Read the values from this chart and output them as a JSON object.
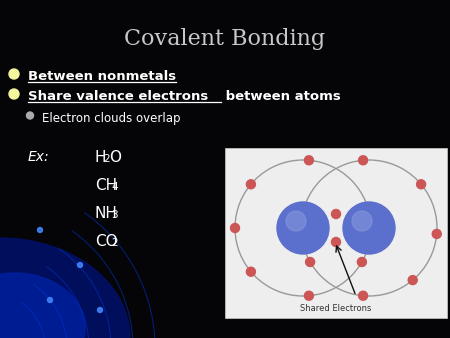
{
  "title": "Covalent Bonding",
  "title_color": "#c8c8c8",
  "title_fontsize": 16,
  "bg_color": "#050508",
  "bullet1_text": "Between nonmetals",
  "bullet2_main": "Share valence electrons",
  "bullet2_rest": " between atoms",
  "bullet3_text": "Electron clouds overlap",
  "ex_label": "Ex:",
  "bullet_color": "#ffffff",
  "bullet_dot_color": "#f5f5a0",
  "text_color": "#ffffff",
  "underline_color": "#ffffff",
  "atom_color_main": "#5b6fcc",
  "atom_color_light": "#8899dd",
  "electron_color": "#cc5555",
  "orbit_color": "#999999",
  "shared_label": "Shared Electrons",
  "image_bg": "#eeeeee",
  "glow_color1": "#001066",
  "glow_color2": "#0022aa",
  "arc_color": "#0033cc",
  "fig_w": 4.5,
  "fig_h": 3.38,
  "dpi": 100
}
